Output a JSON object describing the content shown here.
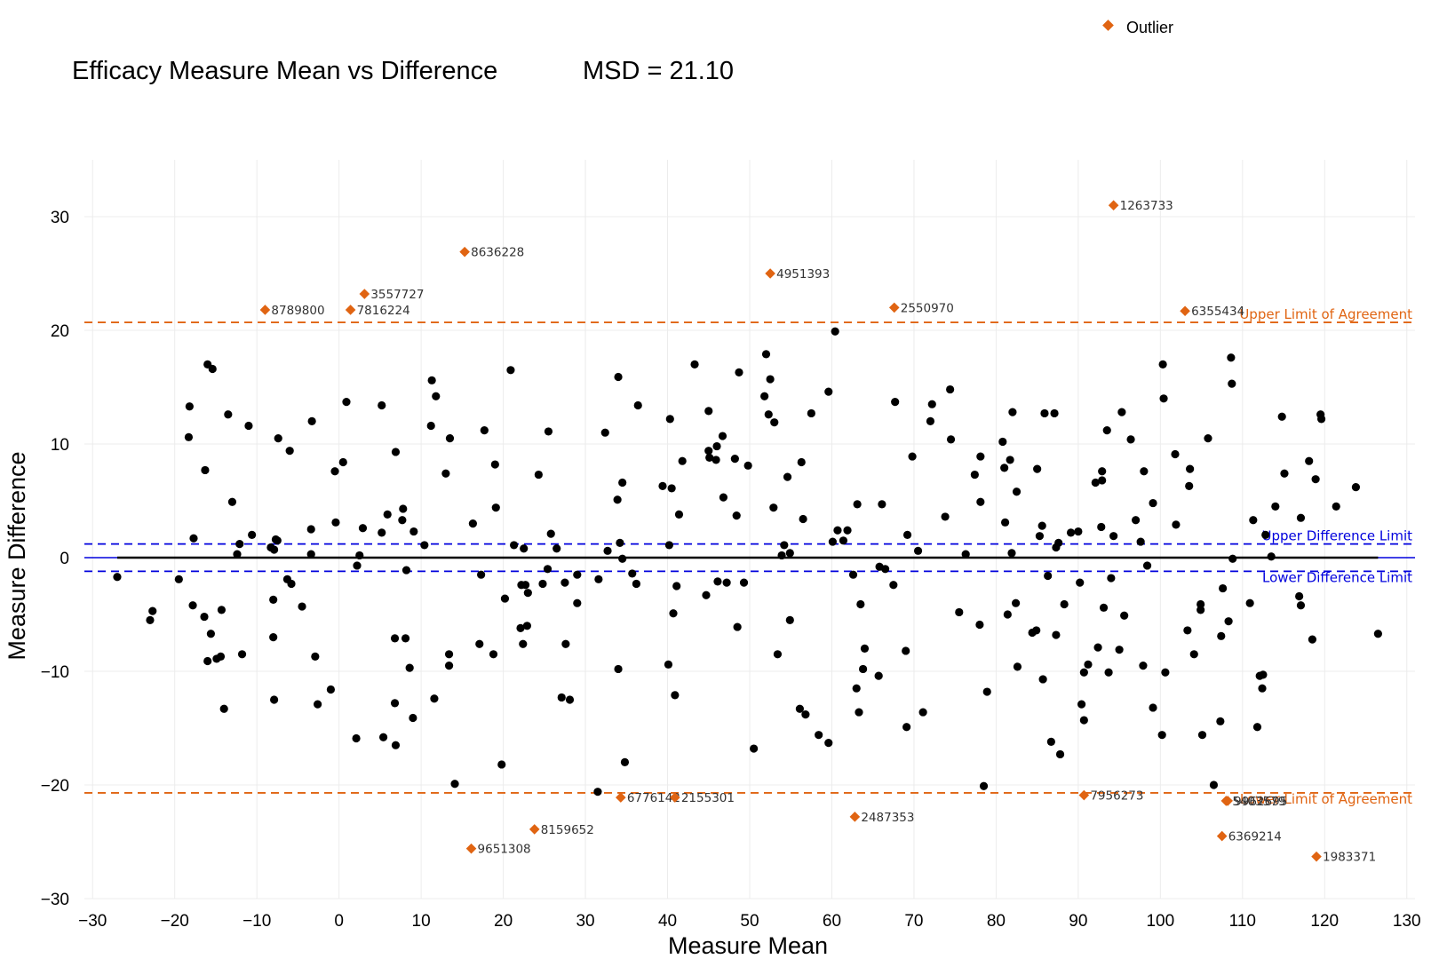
{
  "legend": {
    "outlier_label": "Outlier"
  },
  "colors": {
    "point": "#000000",
    "outlier": "#e06412",
    "limit_of_agreement": "#e06412",
    "difference_limit": "#0000dd",
    "mean_line": "#000000",
    "zero_line": "#0000dd",
    "grid": "#ececec"
  },
  "chart_data": {
    "type": "scatter",
    "title": "Efficacy Measure Mean vs Difference",
    "subtitle": "MSD = 21.10",
    "xlabel": "Measure Mean",
    "ylabel": "Measure Difference",
    "xlim": [
      -31,
      131
    ],
    "ylim": [
      -30,
      35
    ],
    "x_ticks": [
      -30,
      -20,
      -10,
      0,
      10,
      20,
      30,
      40,
      50,
      60,
      70,
      80,
      90,
      100,
      110,
      120,
      130
    ],
    "y_ticks": [
      -30,
      -20,
      -10,
      0,
      10,
      20,
      30
    ],
    "x_tick_labels": [
      "−30",
      "−20",
      "−10",
      "0",
      "10",
      "20",
      "30",
      "40",
      "50",
      "60",
      "70",
      "80",
      "90",
      "100",
      "110",
      "120",
      "130"
    ],
    "y_tick_labels": [
      "−30",
      "−20",
      "−10",
      "0",
      "10",
      "20",
      "30"
    ],
    "grid": true,
    "legend_position": "top-right",
    "reference_lines": [
      {
        "label": "Upper Limit of Agreement",
        "y": 20.7,
        "style": "dashed",
        "color": "#e06412"
      },
      {
        "label": "Lower Limit of Agreement",
        "y": -20.7,
        "style": "dashed",
        "color": "#e06412"
      },
      {
        "label": "Upper Difference Limit",
        "y": 1.2,
        "style": "dashed",
        "color": "#0000dd"
      },
      {
        "label": "Lower Difference Limit",
        "y": -1.2,
        "style": "dashed",
        "color": "#0000dd"
      }
    ],
    "mean_line": {
      "y": 0,
      "x_range": [
        -27,
        126.5
      ]
    },
    "outliers": [
      {
        "id": "1263733",
        "x": 94.3,
        "y": 31.0
      },
      {
        "id": "8636228",
        "x": 15.3,
        "y": 26.9
      },
      {
        "id": "4951393",
        "x": 52.5,
        "y": 25.0
      },
      {
        "id": "3557727",
        "x": 3.1,
        "y": 23.2
      },
      {
        "id": "2550970",
        "x": 67.6,
        "y": 22.0
      },
      {
        "id": "8789800",
        "x": -9.0,
        "y": 21.8
      },
      {
        "id": "7816224",
        "x": 1.4,
        "y": 21.8
      },
      {
        "id": "6355434",
        "x": 103.0,
        "y": 21.7
      },
      {
        "id": "7956273",
        "x": 90.7,
        "y": -20.9
      },
      {
        "id": "6776142",
        "x": 34.3,
        "y": -21.1
      },
      {
        "id": "2155301",
        "x": 40.9,
        "y": -21.1
      },
      {
        "id": "5403579",
        "x": 108.0,
        "y": -21.4
      },
      {
        "id": "9962695",
        "x": 108.2,
        "y": -21.4
      },
      {
        "id": "2487353",
        "x": 62.8,
        "y": -22.8
      },
      {
        "id": "8159652",
        "x": 23.8,
        "y": -23.9
      },
      {
        "id": "6369214",
        "x": 107.5,
        "y": -24.5
      },
      {
        "id": "9651308",
        "x": 16.1,
        "y": -25.6
      },
      {
        "id": "1983371",
        "x": 119.0,
        "y": -26.3
      }
    ],
    "points": [
      [
        -27.0,
        -1.7
      ],
      [
        -23.0,
        -5.5
      ],
      [
        -22.7,
        -4.7
      ],
      [
        -19.5,
        -1.9
      ],
      [
        -18.2,
        13.3
      ],
      [
        -18.3,
        10.6
      ],
      [
        -17.7,
        1.7
      ],
      [
        -17.8,
        -4.2
      ],
      [
        -16.4,
        -5.2
      ],
      [
        -16.3,
        7.7
      ],
      [
        -16.0,
        17.0
      ],
      [
        -15.4,
        16.6
      ],
      [
        -15.6,
        -6.7
      ],
      [
        -16.0,
        -9.1
      ],
      [
        -14.9,
        -8.9
      ],
      [
        -14.4,
        -8.7
      ],
      [
        -14.3,
        -4.6
      ],
      [
        -14.0,
        -13.3
      ],
      [
        -13.5,
        12.6
      ],
      [
        -13.0,
        4.9
      ],
      [
        -12.4,
        0.3
      ],
      [
        -12.1,
        1.2
      ],
      [
        -11.8,
        -8.5
      ],
      [
        -11.0,
        11.6
      ],
      [
        -10.6,
        2.0
      ],
      [
        -8.3,
        0.9
      ],
      [
        -8.0,
        -3.7
      ],
      [
        -8.0,
        -7.0
      ],
      [
        -7.9,
        -12.5
      ],
      [
        -7.9,
        0.7
      ],
      [
        -7.7,
        1.6
      ],
      [
        -7.5,
        1.5
      ],
      [
        -7.4,
        10.5
      ],
      [
        -6.3,
        -1.9
      ],
      [
        -5.8,
        -2.3
      ],
      [
        -6.0,
        9.4
      ],
      [
        -4.5,
        -4.3
      ],
      [
        -3.4,
        2.5
      ],
      [
        -3.3,
        12.0
      ],
      [
        -3.4,
        0.3
      ],
      [
        -2.9,
        -8.7
      ],
      [
        -2.6,
        -12.9
      ],
      [
        -1.0,
        -11.6
      ],
      [
        -0.5,
        7.6
      ],
      [
        -0.4,
        3.1
      ],
      [
        0.5,
        8.4
      ],
      [
        0.9,
        13.7
      ],
      [
        2.1,
        -15.9
      ],
      [
        2.2,
        -0.7
      ],
      [
        2.5,
        0.2
      ],
      [
        2.9,
        2.6
      ],
      [
        5.2,
        2.2
      ],
      [
        5.2,
        13.4
      ],
      [
        5.4,
        -15.8
      ],
      [
        5.9,
        3.8
      ],
      [
        6.9,
        -16.5
      ],
      [
        6.9,
        9.3
      ],
      [
        6.8,
        -12.8
      ],
      [
        6.8,
        -7.1
      ],
      [
        7.7,
        3.3
      ],
      [
        7.8,
        4.3
      ],
      [
        8.2,
        -1.1
      ],
      [
        8.1,
        -7.1
      ],
      [
        8.6,
        -9.7
      ],
      [
        9.0,
        -14.1
      ],
      [
        9.1,
        2.3
      ],
      [
        10.4,
        1.1
      ],
      [
        11.2,
        11.6
      ],
      [
        11.3,
        15.6
      ],
      [
        11.8,
        14.2
      ],
      [
        11.6,
        -12.4
      ],
      [
        13.0,
        7.4
      ],
      [
        13.4,
        -9.5
      ],
      [
        13.5,
        10.5
      ],
      [
        13.4,
        -8.5
      ],
      [
        14.1,
        -19.9
      ],
      [
        16.3,
        3.0
      ],
      [
        17.1,
        -7.6
      ],
      [
        17.3,
        -1.5
      ],
      [
        17.7,
        11.2
      ],
      [
        18.8,
        -8.5
      ],
      [
        19.0,
        8.2
      ],
      [
        19.1,
        4.4
      ],
      [
        19.8,
        -18.2
      ],
      [
        20.2,
        -3.6
      ],
      [
        20.9,
        16.5
      ],
      [
        21.3,
        1.1
      ],
      [
        22.1,
        -6.2
      ],
      [
        22.4,
        -7.6
      ],
      [
        22.2,
        -2.4
      ],
      [
        22.5,
        0.8
      ],
      [
        22.7,
        -2.4
      ],
      [
        22.9,
        -6.0
      ],
      [
        23.0,
        -3.1
      ],
      [
        24.3,
        7.3
      ],
      [
        24.8,
        -2.3
      ],
      [
        25.4,
        -1.0
      ],
      [
        25.5,
        11.1
      ],
      [
        25.8,
        2.1
      ],
      [
        26.5,
        0.8
      ],
      [
        27.1,
        -12.3
      ],
      [
        27.5,
        -2.2
      ],
      [
        27.6,
        -7.6
      ],
      [
        28.1,
        -12.5
      ],
      [
        29.0,
        -1.5
      ],
      [
        29.0,
        -4.0
      ],
      [
        31.5,
        -20.6
      ],
      [
        31.6,
        -1.9
      ],
      [
        32.4,
        11.0
      ],
      [
        32.7,
        0.6
      ],
      [
        33.9,
        5.1
      ],
      [
        34.0,
        -9.8
      ],
      [
        34.0,
        15.9
      ],
      [
        34.2,
        1.3
      ],
      [
        34.5,
        6.6
      ],
      [
        34.5,
        -0.1
      ],
      [
        34.8,
        -18.0
      ],
      [
        35.7,
        -1.4
      ],
      [
        36.2,
        -2.3
      ],
      [
        36.4,
        13.4
      ],
      [
        39.4,
        6.3
      ],
      [
        40.1,
        -9.4
      ],
      [
        40.3,
        12.2
      ],
      [
        40.2,
        1.1
      ],
      [
        40.5,
        6.1
      ],
      [
        40.7,
        -4.9
      ],
      [
        40.9,
        -12.1
      ],
      [
        41.1,
        -2.5
      ],
      [
        41.4,
        3.8
      ],
      [
        41.8,
        8.5
      ],
      [
        43.3,
        17.0
      ],
      [
        44.7,
        -3.3
      ],
      [
        45.0,
        9.4
      ],
      [
        45.1,
        8.8
      ],
      [
        45.0,
        12.9
      ],
      [
        45.9,
        8.6
      ],
      [
        46.0,
        9.8
      ],
      [
        46.1,
        -2.1
      ],
      [
        46.7,
        10.7
      ],
      [
        46.8,
        5.3
      ],
      [
        47.2,
        -2.2
      ],
      [
        48.2,
        8.7
      ],
      [
        48.4,
        3.7
      ],
      [
        48.7,
        16.3
      ],
      [
        48.5,
        -6.1
      ],
      [
        49.3,
        -2.2
      ],
      [
        49.8,
        8.1
      ],
      [
        50.5,
        -16.8
      ],
      [
        51.8,
        14.2
      ],
      [
        52.0,
        17.9
      ],
      [
        52.3,
        12.6
      ],
      [
        52.5,
        15.7
      ],
      [
        52.9,
        4.4
      ],
      [
        53.0,
        11.9
      ],
      [
        53.4,
        -8.5
      ],
      [
        53.9,
        0.2
      ],
      [
        54.2,
        1.1
      ],
      [
        54.6,
        7.1
      ],
      [
        54.9,
        -5.5
      ],
      [
        54.9,
        0.4
      ],
      [
        56.1,
        -13.3
      ],
      [
        56.3,
        8.4
      ],
      [
        56.5,
        3.4
      ],
      [
        56.8,
        -13.8
      ],
      [
        57.5,
        12.7
      ],
      [
        58.4,
        -15.6
      ],
      [
        59.6,
        14.6
      ],
      [
        59.6,
        -16.3
      ],
      [
        60.1,
        1.4
      ],
      [
        60.4,
        19.9
      ],
      [
        60.7,
        2.4
      ],
      [
        61.4,
        1.5
      ],
      [
        61.9,
        2.4
      ],
      [
        62.6,
        -1.5
      ],
      [
        63.0,
        -11.5
      ],
      [
        63.1,
        4.7
      ],
      [
        63.3,
        -13.6
      ],
      [
        63.5,
        -4.1
      ],
      [
        63.8,
        -9.8
      ],
      [
        64.0,
        -8.0
      ],
      [
        65.7,
        -10.4
      ],
      [
        65.8,
        -0.8
      ],
      [
        66.1,
        4.7
      ],
      [
        66.5,
        -1.0
      ],
      [
        67.5,
        -2.4
      ],
      [
        67.7,
        13.7
      ],
      [
        69.0,
        -8.2
      ],
      [
        69.2,
        2.0
      ],
      [
        69.1,
        -14.9
      ],
      [
        69.8,
        8.9
      ],
      [
        70.5,
        0.6
      ],
      [
        71.1,
        -13.6
      ],
      [
        72.0,
        12.0
      ],
      [
        72.2,
        13.5
      ],
      [
        73.8,
        3.6
      ],
      [
        74.4,
        14.8
      ],
      [
        74.5,
        10.4
      ],
      [
        75.5,
        -4.8
      ],
      [
        76.3,
        0.3
      ],
      [
        77.4,
        7.3
      ],
      [
        78.0,
        -5.9
      ],
      [
        78.1,
        8.9
      ],
      [
        78.1,
        4.9
      ],
      [
        78.5,
        -20.1
      ],
      [
        78.9,
        -11.8
      ],
      [
        80.8,
        10.2
      ],
      [
        81.1,
        3.1
      ],
      [
        81.0,
        7.9
      ],
      [
        81.4,
        -5.0
      ],
      [
        81.7,
        8.6
      ],
      [
        81.9,
        0.4
      ],
      [
        82.0,
        12.8
      ],
      [
        82.4,
        -4.0
      ],
      [
        82.5,
        5.8
      ],
      [
        82.6,
        -9.6
      ],
      [
        84.4,
        -6.6
      ],
      [
        84.9,
        -6.4
      ],
      [
        85.0,
        7.8
      ],
      [
        85.3,
        1.9
      ],
      [
        85.6,
        2.8
      ],
      [
        85.7,
        -10.7
      ],
      [
        85.9,
        12.7
      ],
      [
        86.3,
        -1.6
      ],
      [
        86.7,
        -16.2
      ],
      [
        87.1,
        12.7
      ],
      [
        87.3,
        0.9
      ],
      [
        87.3,
        -6.8
      ],
      [
        87.6,
        1.3
      ],
      [
        87.8,
        -17.3
      ],
      [
        88.3,
        -4.1
      ],
      [
        89.1,
        2.2
      ],
      [
        90.0,
        2.3
      ],
      [
        90.2,
        -2.2
      ],
      [
        90.4,
        -12.9
      ],
      [
        90.7,
        -14.3
      ],
      [
        90.7,
        -10.1
      ],
      [
        91.2,
        -9.4
      ],
      [
        92.1,
        6.6
      ],
      [
        92.4,
        -7.9
      ],
      [
        92.8,
        2.7
      ],
      [
        92.9,
        6.8
      ],
      [
        92.9,
        7.6
      ],
      [
        93.1,
        -4.4
      ],
      [
        93.5,
        11.2
      ],
      [
        93.7,
        -10.1
      ],
      [
        94.0,
        -1.8
      ],
      [
        94.3,
        1.9
      ],
      [
        95.0,
        -8.1
      ],
      [
        95.3,
        12.8
      ],
      [
        95.6,
        -5.1
      ],
      [
        96.4,
        10.4
      ],
      [
        97.0,
        3.3
      ],
      [
        97.6,
        1.4
      ],
      [
        97.9,
        -9.5
      ],
      [
        98.0,
        7.6
      ],
      [
        98.4,
        -0.7
      ],
      [
        99.1,
        4.8
      ],
      [
        99.1,
        -13.2
      ],
      [
        100.2,
        -15.6
      ],
      [
        100.3,
        17.0
      ],
      [
        100.4,
        14.0
      ],
      [
        100.6,
        -10.1
      ],
      [
        101.8,
        9.1
      ],
      [
        101.9,
        2.9
      ],
      [
        103.3,
        -6.4
      ],
      [
        103.5,
        6.3
      ],
      [
        103.6,
        7.8
      ],
      [
        104.1,
        -8.5
      ],
      [
        104.9,
        -4.6
      ],
      [
        104.9,
        -4.1
      ],
      [
        105.1,
        -15.6
      ],
      [
        105.8,
        10.5
      ],
      [
        106.5,
        -20.0
      ],
      [
        107.3,
        -14.4
      ],
      [
        107.4,
        -6.9
      ],
      [
        107.6,
        -2.7
      ],
      [
        108.3,
        -5.6
      ],
      [
        108.6,
        17.6
      ],
      [
        108.7,
        15.3
      ],
      [
        108.8,
        -0.1
      ],
      [
        110.9,
        -4.0
      ],
      [
        111.3,
        3.3
      ],
      [
        111.8,
        -14.9
      ],
      [
        112.1,
        -10.4
      ],
      [
        112.4,
        -11.5
      ],
      [
        112.5,
        -10.3
      ],
      [
        112.8,
        2.0
      ],
      [
        113.5,
        0.1
      ],
      [
        114.0,
        4.5
      ],
      [
        114.8,
        12.4
      ],
      [
        115.1,
        7.4
      ],
      [
        116.9,
        -3.4
      ],
      [
        117.1,
        -4.2
      ],
      [
        117.1,
        3.5
      ],
      [
        118.1,
        8.5
      ],
      [
        118.5,
        -7.2
      ],
      [
        118.9,
        6.9
      ],
      [
        119.5,
        12.6
      ],
      [
        119.6,
        12.2
      ],
      [
        121.4,
        4.5
      ],
      [
        123.8,
        6.2
      ],
      [
        126.5,
        -6.7
      ]
    ]
  }
}
